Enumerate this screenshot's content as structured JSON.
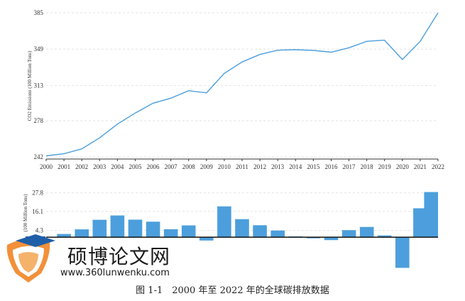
{
  "chart_data": [
    {
      "type": "line",
      "ylabel": "CO2 Emissions (100 Million Tons)",
      "x": [
        "2000",
        "2001",
        "2002",
        "2003",
        "2004",
        "2005",
        "2006",
        "2007",
        "2008",
        "2009",
        "2010",
        "2011",
        "2012",
        "2013",
        "2014",
        "2015",
        "2016",
        "2017",
        "2018",
        "2019",
        "2020",
        "2021",
        "2022"
      ],
      "values": [
        243.2,
        245.2,
        250.1,
        261.0,
        274.6,
        285.6,
        295.3,
        300.3,
        307.7,
        305.6,
        324.9,
        336.2,
        343.7,
        347.9,
        348.4,
        347.7,
        345.9,
        350.3,
        356.7,
        357.8,
        338.6,
        356.7,
        385.0
      ],
      "yticks": [
        "242",
        "278",
        "313",
        "349",
        "385"
      ],
      "ylim": [
        240,
        385
      ],
      "color": "#4c9fdc",
      "grid": true
    },
    {
      "type": "bar",
      "ylabel": "(100 Million Tons)",
      "x": [
        "2000",
        "2001",
        "2002",
        "2003",
        "2004",
        "2005",
        "2006",
        "2007",
        "2008",
        "2009",
        "2010",
        "2011",
        "2012",
        "2013",
        "2014",
        "2015",
        "2016",
        "2017",
        "2018",
        "2019",
        "2020",
        "2021",
        "2022"
      ],
      "values": [
        0.0,
        2.0,
        4.9,
        10.9,
        13.6,
        11.0,
        9.7,
        5.0,
        7.4,
        -2.1,
        19.3,
        11.3,
        7.5,
        4.2,
        0.5,
        -0.7,
        -1.8,
        4.4,
        6.4,
        1.1,
        -19.2,
        18.1,
        28.3
      ],
      "yticks": [
        "4.3",
        "16.1",
        "27.8"
      ],
      "ylim": [
        -19.5,
        28.5
      ],
      "color": "#4c9fdc",
      "grid": true
    }
  ],
  "watermark": {
    "title": "硕博论文网",
    "url": "www.360lunwenku.com"
  },
  "caption": "图 1-1　2000 年至 2022 年的全球碳排放数据"
}
